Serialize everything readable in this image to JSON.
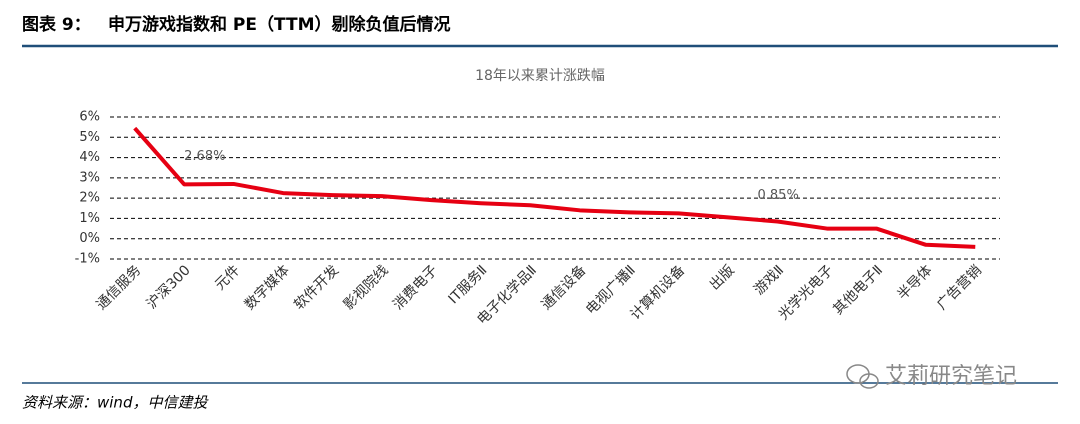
{
  "header": {
    "label": "图表 9：",
    "title": "申万游戏指数和 PE（TTM）剔除负值后情况"
  },
  "source": "资料来源：wind，中信建投",
  "watermark": "艾莉研究笔记",
  "chart_data": {
    "type": "line",
    "title": "18年以来累计涨跌幅",
    "categories": [
      "通信服务",
      "沪深300",
      "元件",
      "数字媒体",
      "软件开发",
      "影视院线",
      "消费电子",
      "IT服务Ⅱ",
      "电子化学品Ⅱ",
      "通信设备",
      "电视广播Ⅱ",
      "计算机设备",
      "出版",
      "游戏Ⅱ",
      "光学光电子",
      "其他电子Ⅱ",
      "半导体",
      "广告营销"
    ],
    "values": [
      5.45,
      2.68,
      2.7,
      2.25,
      2.15,
      2.1,
      1.9,
      1.75,
      1.65,
      1.4,
      1.3,
      1.25,
      1.05,
      0.85,
      0.5,
      0.5,
      -0.3,
      -0.4
    ],
    "value_labels": [
      null,
      "2.68%",
      null,
      null,
      null,
      null,
      null,
      null,
      null,
      null,
      null,
      null,
      null,
      "0.85%",
      null,
      null,
      null,
      null
    ],
    "color": "#e60012",
    "ylim": [
      -1,
      6
    ],
    "yticks": [
      {
        "value": -1,
        "label": "-1%"
      },
      {
        "value": 0,
        "label": "0%"
      },
      {
        "value": 1,
        "label": "1%"
      },
      {
        "value": 2,
        "label": "2%"
      },
      {
        "value": 3,
        "label": "3%"
      },
      {
        "value": 4,
        "label": "4%"
      },
      {
        "value": 5,
        "label": "5%"
      },
      {
        "value": 6,
        "label": "6%"
      }
    ],
    "grid": true
  }
}
